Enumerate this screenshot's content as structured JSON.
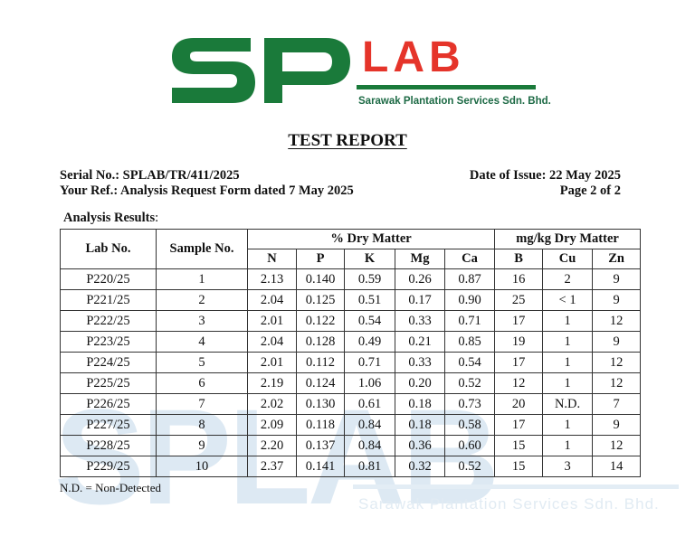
{
  "header": {
    "logo_letters": "SP",
    "logo_lab": "LAB",
    "company": "Sarawak Plantation Services Sdn. Bhd.",
    "title": "TEST REPORT"
  },
  "meta": {
    "serial": "Serial No.: SPLAB/TR/411/2025",
    "ref": "Your Ref.: Analysis Request Form dated 7 May 2025",
    "date": "Date of Issue: 22 May 2025",
    "page": "Page 2 of 2"
  },
  "section_label": "Analysis Results",
  "table": {
    "col_lab": "Lab No.",
    "col_sample": "Sample No.",
    "group_dry": "% Dry Matter",
    "group_mgkg": "mg/kg Dry Matter",
    "sub_headers": [
      "N",
      "P",
      "K",
      "Mg",
      "Ca",
      "B",
      "Cu",
      "Zn"
    ],
    "rows": [
      [
        "P220/25",
        "1",
        "2.13",
        "0.140",
        "0.59",
        "0.26",
        "0.87",
        "16",
        "2",
        "9"
      ],
      [
        "P221/25",
        "2",
        "2.04",
        "0.125",
        "0.51",
        "0.17",
        "0.90",
        "25",
        "< 1",
        "9"
      ],
      [
        "P222/25",
        "3",
        "2.01",
        "0.122",
        "0.54",
        "0.33",
        "0.71",
        "17",
        "1",
        "12"
      ],
      [
        "P223/25",
        "4",
        "2.04",
        "0.128",
        "0.49",
        "0.21",
        "0.85",
        "19",
        "1",
        "9"
      ],
      [
        "P224/25",
        "5",
        "2.01",
        "0.112",
        "0.71",
        "0.33",
        "0.54",
        "17",
        "1",
        "12"
      ],
      [
        "P225/25",
        "6",
        "2.19",
        "0.124",
        "1.06",
        "0.20",
        "0.52",
        "12",
        "1",
        "12"
      ],
      [
        "P226/25",
        "7",
        "2.02",
        "0.130",
        "0.61",
        "0.18",
        "0.73",
        "20",
        "N.D.",
        "7"
      ],
      [
        "P227/25",
        "8",
        "2.09",
        "0.118",
        "0.84",
        "0.18",
        "0.58",
        "17",
        "1",
        "9"
      ],
      [
        "P228/25",
        "9",
        "2.20",
        "0.137",
        "0.84",
        "0.36",
        "0.60",
        "15",
        "1",
        "12"
      ],
      [
        "P229/25",
        "10",
        "2.37",
        "0.141",
        "0.81",
        "0.32",
        "0.52",
        "15",
        "3",
        "14"
      ]
    ]
  },
  "footnote": "N.D. = Non-Detected",
  "watermark": {
    "letters": "SPLAB",
    "company": "Sarawak Plantation Services Sdn. Bhd."
  },
  "colors": {
    "logo_green": "#1a7a3a",
    "logo_red": "#e5342a",
    "company_green": "#1d6a45",
    "watermark": "#dde9f3"
  }
}
